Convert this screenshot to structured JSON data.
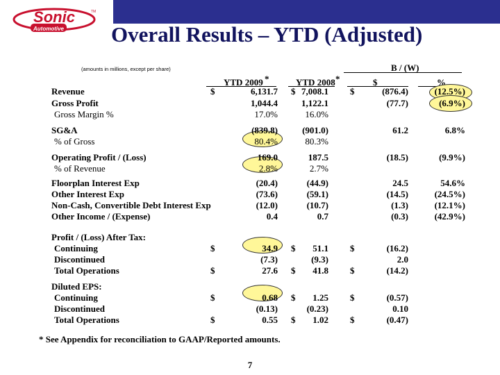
{
  "brand": {
    "logo_main": "Sonic",
    "logo_sub": "Automotive",
    "logo_tm": "TM"
  },
  "title": "Overall Results – YTD (Adjusted)",
  "amounts_note": "(amounts in millions, except per share)",
  "columns": {
    "bw_group": "B / (W)",
    "ytd2009": "YTD 2009",
    "ytd2008": "YTD 2008",
    "asterisk": "*",
    "dollar": "$",
    "pct": "%"
  },
  "rows": [
    {
      "label": "Revenue",
      "bold": true,
      "d1": "$",
      "v09": "6,131.7",
      "d2": "$",
      "v08": "7,008.1",
      "d3": "$",
      "bw": "(876.4)",
      "pct": "(12.5%)"
    },
    {
      "label": "Gross Profit",
      "bold": true,
      "d1": "",
      "v09": "1,044.4",
      "d2": "",
      "v08": "1,122.1",
      "d3": "",
      "bw": "(77.7)",
      "pct": "(6.9%)"
    },
    {
      "label": "Gross Margin %",
      "bold": false,
      "d1": "",
      "v09": "17.0%",
      "d2": "",
      "v08": "16.0%",
      "d3": "",
      "bw": "",
      "pct": ""
    },
    {
      "label": "SG&A",
      "bold": true,
      "d1": "",
      "v09": "(839.8)",
      "d2": "",
      "v08": "(901.0)",
      "d3": "",
      "bw": "61.2",
      "pct": "6.8%"
    },
    {
      "label": "% of Gross",
      "bold": false,
      "d1": "",
      "v09": "80.4%",
      "d2": "",
      "v08": "80.3%",
      "d3": "",
      "bw": "",
      "pct": ""
    },
    {
      "label": "Operating Profit / (Loss)",
      "bold": true,
      "d1": "",
      "v09": "169.0",
      "d2": "",
      "v08": "187.5",
      "d3": "",
      "bw": "(18.5)",
      "pct": "(9.9%)"
    },
    {
      "label": "% of Revenue",
      "bold": false,
      "d1": "",
      "v09": "2.8%",
      "d2": "",
      "v08": "2.7%",
      "d3": "",
      "bw": "",
      "pct": ""
    },
    {
      "label": "Floorplan Interest Exp",
      "bold": true,
      "d1": "",
      "v09": "(20.4)",
      "d2": "",
      "v08": "(44.9)",
      "d3": "",
      "bw": "24.5",
      "pct": "54.6%"
    },
    {
      "label": "Other Interest Exp",
      "bold": true,
      "d1": "",
      "v09": "(73.6)",
      "d2": "",
      "v08": "(59.1)",
      "d3": "",
      "bw": "(14.5)",
      "pct": "(24.5%)"
    },
    {
      "label": "Non-Cash, Convertible Debt Interest Exp",
      "bold": true,
      "d1": "",
      "v09": "(12.0)",
      "d2": "",
      "v08": "(10.7)",
      "d3": "",
      "bw": "(1.3)",
      "pct": "(12.1%)"
    },
    {
      "label": "Other Income / (Expense)",
      "bold": true,
      "d1": "",
      "v09": "0.4",
      "d2": "",
      "v08": "0.7",
      "d3": "",
      "bw": "(0.3)",
      "pct": "(42.9%)"
    },
    {
      "label": "Profit / (Loss) After Tax:",
      "bold": true,
      "d1": "",
      "v09": "",
      "d2": "",
      "v08": "",
      "d3": "",
      "bw": "",
      "pct": ""
    },
    {
      "label": "Continuing",
      "bold": true,
      "d1": "$",
      "v09": "34.9",
      "d2": "$",
      "v08": "51.1",
      "d3": "$",
      "bw": "(16.2)",
      "pct": ""
    },
    {
      "label": "Discontinued",
      "bold": true,
      "d1": "",
      "v09": "(7.3)",
      "d2": "",
      "v08": "(9.3)",
      "d3": "",
      "bw": "2.0",
      "pct": ""
    },
    {
      "label": "Total Operations",
      "bold": true,
      "d1": "$",
      "v09": "27.6",
      "d2": "$",
      "v08": "41.8",
      "d3": "$",
      "bw": "(14.2)",
      "pct": ""
    },
    {
      "label": "Diluted EPS:",
      "bold": true,
      "d1": "",
      "v09": "",
      "d2": "",
      "v08": "",
      "d3": "",
      "bw": "",
      "pct": ""
    },
    {
      "label": "Continuing",
      "bold": true,
      "d1": "$",
      "v09": "0.68",
      "d2": "$",
      "v08": "1.25",
      "d3": "$",
      "bw": "(0.57)",
      "pct": ""
    },
    {
      "label": "Discontinued",
      "bold": true,
      "d1": "",
      "v09": "(0.13)",
      "d2": "",
      "v08": "(0.23)",
      "d3": "",
      "bw": "0.10",
      "pct": ""
    },
    {
      "label": "Total Operations",
      "bold": true,
      "d1": "$",
      "v09": "0.55",
      "d2": "$",
      "v08": "1.02",
      "d3": "$",
      "bw": "(0.47)",
      "pct": ""
    }
  ],
  "footnote": "*  See Appendix for reconciliation to GAAP/Reported amounts.",
  "page_number": "7",
  "colors": {
    "topbar": "#2b2f8f",
    "title": "#12145e",
    "logo_red": "#c8102e",
    "highlight": "#fff799"
  }
}
